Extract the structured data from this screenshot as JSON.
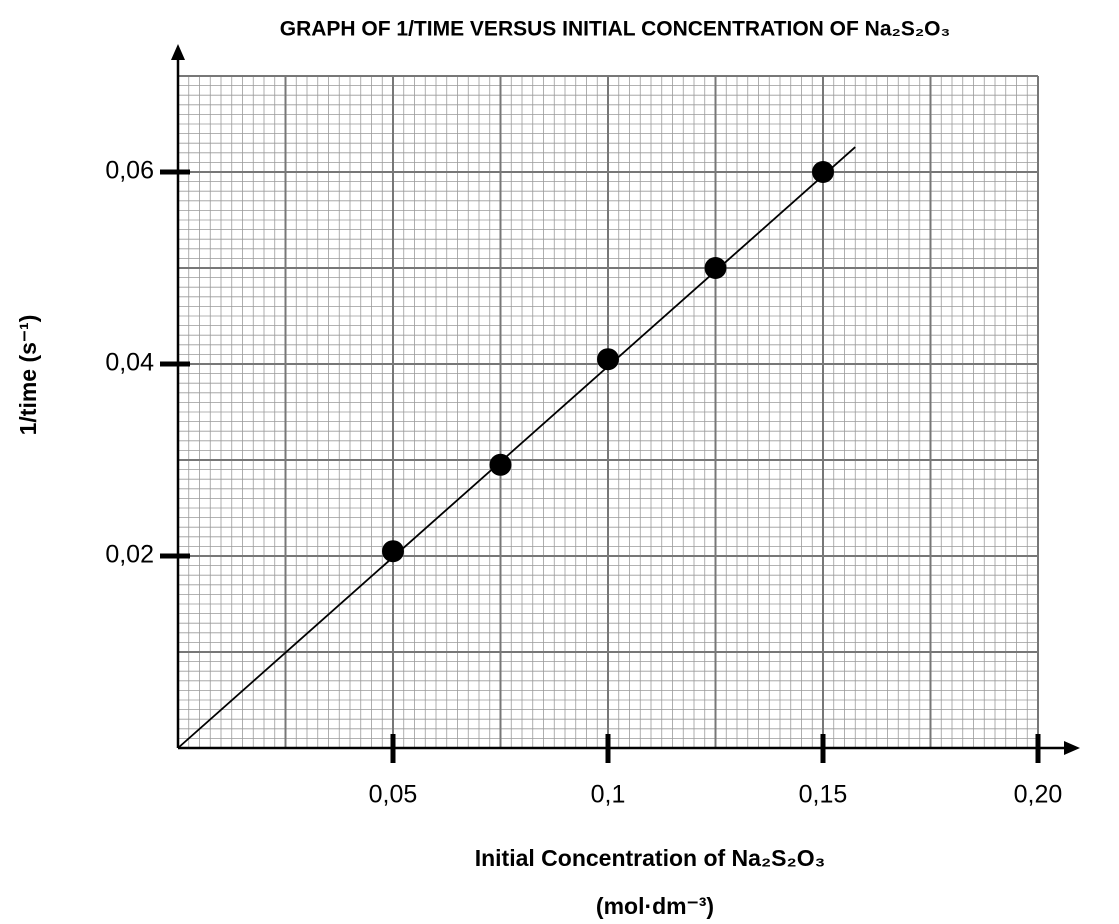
{
  "chart_data": {
    "type": "scatter",
    "title": "GRAPH OF 1/TIME VERSUS INITIAL CONCENTRATION OF Na₂S₂O₃",
    "xlabel": "Initial Concentration of Na₂S₂O₃",
    "xlabel_unit": "(mol·dm⁻³)",
    "ylabel": "1/time (s⁻¹)",
    "x": [
      0.05,
      0.075,
      0.1,
      0.125,
      0.15
    ],
    "values": [
      0.0205,
      0.0295,
      0.0405,
      0.05,
      0.06
    ],
    "color": "#000000",
    "fit_line": {
      "x": [
        0,
        0.1575
      ],
      "values": [
        0,
        0.0626
      ]
    },
    "xlim": [
      0,
      0.2
    ],
    "ylim": [
      0,
      0.07
    ],
    "xticks": [
      {
        "value": 0.05,
        "label": "0,05"
      },
      {
        "value": 0.1,
        "label": "0,1"
      },
      {
        "value": 0.15,
        "label": "0,15"
      },
      {
        "value": 0.2,
        "label": "0,20"
      }
    ],
    "yticks": [
      {
        "value": 0.02,
        "label": "0,02"
      },
      {
        "value": 0.04,
        "label": "0,04"
      },
      {
        "value": 0.06,
        "label": "0,06"
      }
    ],
    "grid_minor": [
      0.0025,
      0.001
    ],
    "grid_major": [
      0.025,
      0.01
    ],
    "grid": true
  }
}
